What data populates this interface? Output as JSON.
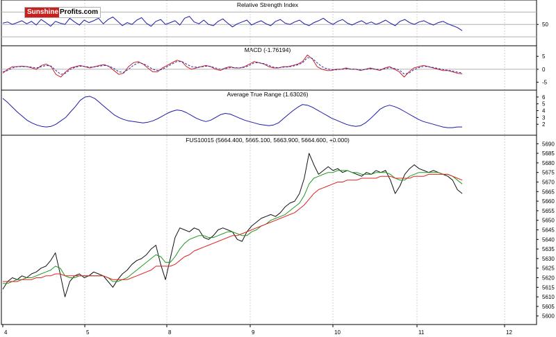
{
  "logo": {
    "part1": "Sunshine",
    "part2": "Profits.com"
  },
  "colors": {
    "line": "#1a1aa6",
    "macd": "#cc2222",
    "signal": "#2a2ab0",
    "ma_fast": "#1f9a1f",
    "ma_slow": "#e02020",
    "grid": "#c0c0c0",
    "frame": "#000000"
  },
  "chart_data": [
    {
      "type": "line",
      "title": "Relative Strength Index",
      "yticks": [
        50
      ],
      "levels": [
        30,
        50,
        70
      ],
      "ylim": [
        20,
        85
      ],
      "series": [
        {
          "values": [
            52,
            54,
            50,
            53,
            56,
            51,
            55,
            49,
            58,
            53,
            47,
            55,
            52,
            50,
            60,
            54,
            49,
            57,
            53,
            56,
            60,
            51,
            58,
            62,
            55,
            48,
            53,
            50,
            57,
            61,
            52,
            47,
            55,
            58,
            50,
            53,
            56,
            49,
            60,
            63,
            54,
            51,
            57,
            50,
            48,
            55,
            59,
            52,
            46,
            51,
            54,
            57,
            49,
            53,
            56,
            51,
            48,
            55,
            58,
            52,
            50,
            54,
            57,
            51,
            48,
            53,
            56,
            60,
            54,
            50,
            55,
            58,
            52,
            49,
            53,
            56,
            51,
            54,
            50,
            53,
            57,
            52,
            48,
            55,
            58,
            53,
            50,
            54,
            56,
            52,
            49,
            53,
            55,
            51,
            48,
            45,
            40
          ]
        }
      ]
    },
    {
      "type": "line",
      "title": "MACD (-1.76194)",
      "yticks": [
        5,
        0,
        -5
      ],
      "ylim": [
        -7,
        8
      ],
      "series": [
        {
          "values": [
            -1.5,
            0,
            1,
            1,
            1.2,
            1,
            0.5,
            0,
            1.5,
            2,
            1,
            -2,
            -3,
            -1,
            0.5,
            1,
            1.5,
            1,
            0.5,
            1,
            1.5,
            1.8,
            1,
            -0.5,
            -2,
            -1.5,
            1,
            2.5,
            3,
            2,
            0.5,
            -1,
            -1,
            0.5,
            1.5,
            2.5,
            3.5,
            3,
            1,
            0,
            0.5,
            1,
            1.5,
            1,
            0,
            -0.5,
            0.5,
            1,
            0.5,
            0.5,
            1,
            2,
            3,
            2.5,
            2,
            1,
            0.5,
            0.5,
            1,
            1,
            1.5,
            2,
            3,
            5.5,
            4,
            1,
            0,
            -0.5,
            -0.5,
            0,
            0,
            0.5,
            0,
            0,
            -0.5,
            0,
            0.5,
            0,
            -0.5,
            0.5,
            1,
            0,
            -1,
            -3,
            -1,
            0.5,
            1,
            1.5,
            1,
            0.5,
            0,
            -0.5,
            -0.5,
            -1,
            -1.5,
            -1.8
          ]
        },
        {
          "values": [
            -1,
            -0.5,
            0.5,
            1,
            1,
            1,
            0.8,
            0.5,
            1,
            1.5,
            1.2,
            -0.5,
            -2,
            -1.5,
            0,
            0.8,
            1.2,
            1.1,
            0.8,
            0.9,
            1.2,
            1.5,
            1.2,
            0.3,
            -1,
            -1.2,
            0,
            1.5,
            2.5,
            2.2,
            1.2,
            0,
            -0.5,
            0,
            1,
            2,
            3,
            3,
            2,
            1,
            0.8,
            0.9,
            1.2,
            1.1,
            0.5,
            0,
            0.2,
            0.6,
            0.6,
            0.5,
            0.8,
            1.5,
            2.5,
            2.5,
            2.2,
            1.5,
            0.8,
            0.6,
            0.8,
            0.9,
            1.2,
            1.7,
            2.5,
            4.5,
            4.2,
            2.5,
            1,
            0.2,
            -0.2,
            -0.2,
            0,
            0.2,
            0.1,
            0,
            -0.3,
            -0.1,
            0.2,
            0.1,
            -0.2,
            0.2,
            0.6,
            0.3,
            -0.3,
            -1.8,
            -1.5,
            -0.2,
            0.6,
            1.1,
            1,
            0.7,
            0.3,
            -0.1,
            -0.4,
            -0.7,
            -1.1,
            -1.4
          ]
        }
      ]
    },
    {
      "type": "line",
      "title": "Average True Range (1.63026)",
      "yticks": [
        6,
        5,
        4,
        3,
        2
      ],
      "ylim": [
        0.8,
        6.6
      ],
      "series": [
        {
          "values": [
            5.8,
            5.2,
            4.5,
            3.8,
            3.2,
            2.6,
            2.2,
            1.9,
            1.7,
            1.6,
            1.7,
            2,
            2.5,
            3,
            3.8,
            4.6,
            5.5,
            6,
            6.1,
            5.8,
            5.2,
            4.6,
            4,
            3.4,
            3,
            2.7,
            2.5,
            2.4,
            2.3,
            2.2,
            2.3,
            2.5,
            2.8,
            3.2,
            3.6,
            3.9,
            4.1,
            4,
            3.7,
            3.3,
            2.9,
            2.6,
            2.4,
            2.6,
            3,
            3.4,
            3.6,
            3.5,
            3.2,
            2.9,
            2.6,
            2.4,
            2.2,
            2,
            1.9,
            1.8,
            1.9,
            2.2,
            2.8,
            3.4,
            4,
            4.5,
            4.9,
            4.8,
            4.5,
            4.1,
            3.7,
            3.3,
            2.9,
            2.6,
            2.3,
            2,
            1.8,
            1.7,
            1.8,
            2.2,
            2.8,
            3.5,
            4.2,
            4.6,
            4.8,
            4.6,
            4.3,
            3.9,
            3.5,
            3.1,
            2.7,
            2.4,
            2.2,
            2,
            1.8,
            1.6,
            1.5,
            1.5,
            1.6,
            1.6
          ]
        }
      ]
    },
    {
      "type": "line",
      "title": "FUS10015 (5664.400, 5665.100, 5663.900, 5664.600, +0.000)",
      "yticks": [
        5690,
        5685,
        5680,
        5675,
        5670,
        5665,
        5660,
        5655,
        5650,
        5645,
        5640,
        5635,
        5630,
        5625,
        5620,
        5615,
        5610,
        5605,
        5600
      ],
      "ylim": [
        5597,
        5693
      ],
      "x_tick_labels": [
        "4",
        "5",
        "8",
        "9",
        "10",
        "11",
        "12"
      ],
      "series": [
        {
          "values": [
            5614,
            5618,
            5620,
            5619,
            5621,
            5620,
            5622,
            5623,
            5625,
            5626,
            5629,
            5633,
            5622,
            5610,
            5618,
            5621,
            5622,
            5620,
            5621,
            5623,
            5622,
            5621,
            5618,
            5615,
            5619,
            5622,
            5624,
            5627,
            5629,
            5630,
            5632,
            5635,
            5637,
            5627,
            5619,
            5630,
            5641,
            5646,
            5645,
            5644,
            5646,
            5645,
            5641,
            5640,
            5642,
            5645,
            5646,
            5645,
            5644,
            5640,
            5639,
            5644,
            5647,
            5649,
            5651,
            5652,
            5653,
            5652,
            5654,
            5657,
            5659,
            5660,
            5664,
            5672,
            5685,
            5679,
            5674,
            5676,
            5678,
            5676,
            5677,
            5675,
            5676,
            5675,
            5674,
            5673,
            5675,
            5674,
            5676,
            5675,
            5676,
            5671,
            5664,
            5668,
            5674,
            5677,
            5679,
            5677,
            5676,
            5675,
            5676,
            5675,
            5674,
            5673,
            5671,
            5666,
            5664
          ]
        },
        {
          "values": [
            5617,
            5617,
            5618,
            5619,
            5619,
            5620,
            5620,
            5621,
            5622,
            5623,
            5624,
            5626,
            5625,
            5621,
            5620,
            5620,
            5621,
            5621,
            5621,
            5621,
            5621,
            5621,
            5620,
            5618,
            5618,
            5619,
            5620,
            5622,
            5624,
            5626,
            5628,
            5630,
            5632,
            5631,
            5628,
            5628,
            5631,
            5635,
            5638,
            5640,
            5641,
            5642,
            5642,
            5641,
            5641,
            5642,
            5643,
            5644,
            5644,
            5643,
            5642,
            5642,
            5644,
            5645,
            5647,
            5648,
            5650,
            5651,
            5652,
            5653,
            5655,
            5657,
            5659,
            5663,
            5669,
            5672,
            5673,
            5674,
            5675,
            5675,
            5676,
            5676,
            5676,
            5675,
            5675,
            5674,
            5674,
            5674,
            5675,
            5675,
            5675,
            5674,
            5672,
            5671,
            5671,
            5673,
            5674,
            5675,
            5675,
            5675,
            5675,
            5675,
            5674,
            5674,
            5673,
            5671,
            5669
          ]
        },
        {
          "values": [
            5618,
            5618,
            5618,
            5618,
            5619,
            5619,
            5619,
            5620,
            5620,
            5621,
            5621,
            5622,
            5622,
            5621,
            5621,
            5621,
            5621,
            5621,
            5621,
            5621,
            5621,
            5621,
            5620,
            5619,
            5619,
            5619,
            5619,
            5620,
            5621,
            5622,
            5623,
            5624,
            5626,
            5626,
            5626,
            5626,
            5627,
            5629,
            5631,
            5632,
            5634,
            5635,
            5636,
            5637,
            5638,
            5639,
            5640,
            5641,
            5642,
            5642,
            5643,
            5644,
            5645,
            5646,
            5647,
            5648,
            5649,
            5650,
            5651,
            5652,
            5653,
            5654,
            5656,
            5658,
            5661,
            5664,
            5666,
            5667,
            5668,
            5669,
            5670,
            5670,
            5671,
            5671,
            5671,
            5672,
            5672,
            5672,
            5672,
            5673,
            5673,
            5673,
            5672,
            5672,
            5672,
            5672,
            5673,
            5673,
            5673,
            5674,
            5674,
            5674,
            5674,
            5674,
            5673,
            5672,
            5671
          ]
        }
      ]
    }
  ]
}
